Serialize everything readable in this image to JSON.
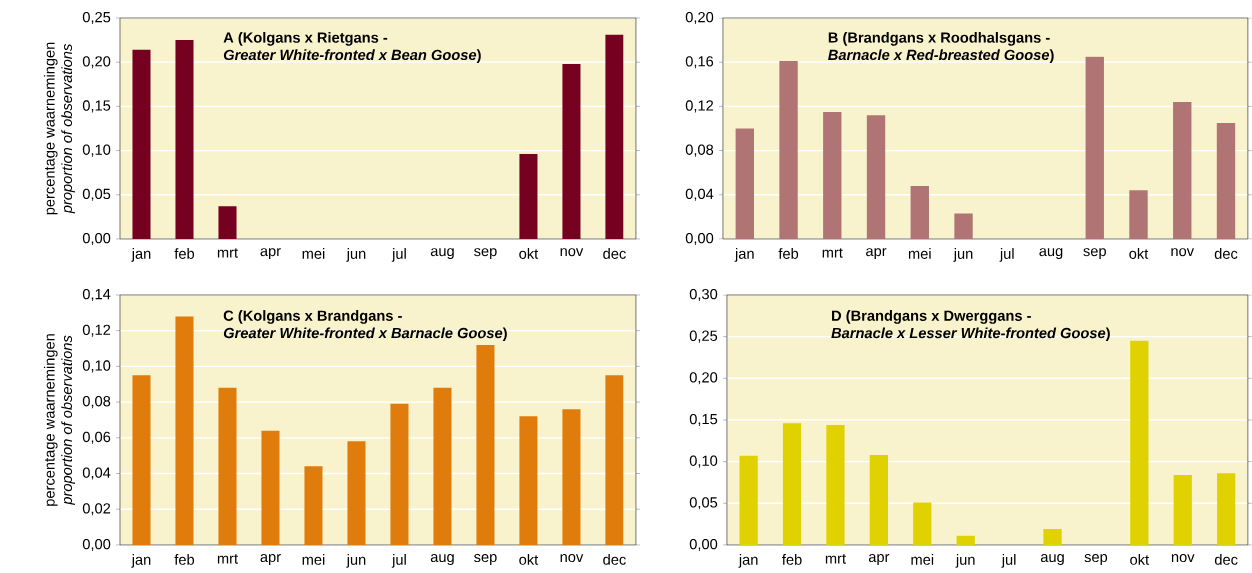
{
  "chart_data": [
    {
      "type": "bar",
      "title": "A (Kolgans x Rietgans -",
      "subtitle": "*Greater White-fronted x Bean Goose*)",
      "ylabel": "percentage waarnemingen",
      "annotations": [
        "proportion of observations"
      ],
      "categories": [
        "jan",
        "feb",
        "mrt",
        "apr",
        "mei",
        "jun",
        "jul",
        "aug",
        "sep",
        "okt",
        "nov",
        "dec"
      ],
      "values": [
        0.214,
        0.225,
        0.037,
        0,
        0,
        0,
        0,
        0,
        0,
        0.096,
        0.198,
        0.231
      ],
      "color": "#76001f",
      "ylim": [
        0,
        0.25
      ],
      "yticks": [
        {
          "value": 0,
          "label": "0,00"
        },
        {
          "value": 0.05,
          "label": "0,05"
        },
        {
          "value": 0.1,
          "label": "0,10"
        },
        {
          "value": 0.15,
          "label": "0,15"
        },
        {
          "value": 0.2,
          "label": "0,20"
        },
        {
          "value": 0.25,
          "label": "0,25"
        }
      ],
      "grid": "y"
    },
    {
      "type": "bar",
      "title": "B (Brandgans x Roodhalsgans -",
      "subtitle": "*Barnacle x Red-breasted Goose*)",
      "categories": [
        "jan",
        "feb",
        "mrt",
        "apr",
        "mei",
        "jun",
        "jul",
        "aug",
        "sep",
        "okt",
        "nov",
        "dec"
      ],
      "values": [
        0.1,
        0.161,
        0.115,
        0.112,
        0.048,
        0.023,
        0,
        0,
        0.165,
        0.044,
        0.124,
        0.105
      ],
      "color": "#b07474",
      "ylim": [
        0,
        0.2
      ],
      "yticks": [
        {
          "value": 0,
          "label": "0,00"
        },
        {
          "value": 0.04,
          "label": "0,04"
        },
        {
          "value": 0.08,
          "label": "0,08"
        },
        {
          "value": 0.12,
          "label": "0,12"
        },
        {
          "value": 0.16,
          "label": "0,16"
        },
        {
          "value": 0.2,
          "label": "0,20"
        }
      ],
      "grid": "y"
    },
    {
      "type": "bar",
      "title": "C (Kolgans x Brandgans -",
      "subtitle": "*Greater White-fronted x Barnacle Goose*)",
      "ylabel": "percentage waarnemingen",
      "annotations": [
        "proportion of observations"
      ],
      "categories": [
        "jan",
        "feb",
        "mrt",
        "apr",
        "mei",
        "jun",
        "jul",
        "aug",
        "sep",
        "okt",
        "nov",
        "dec"
      ],
      "values": [
        0.095,
        0.128,
        0.088,
        0.064,
        0.044,
        0.058,
        0.079,
        0.088,
        0.112,
        0.072,
        0.076,
        0.095
      ],
      "color": "#e07c0c",
      "ylim": [
        0,
        0.14
      ],
      "yticks": [
        {
          "value": 0,
          "label": "0,00"
        },
        {
          "value": 0.02,
          "label": "0,02"
        },
        {
          "value": 0.04,
          "label": "0,04"
        },
        {
          "value": 0.06,
          "label": "0,06"
        },
        {
          "value": 0.08,
          "label": "0,08"
        },
        {
          "value": 0.1,
          "label": "0,10"
        },
        {
          "value": 0.12,
          "label": "0,12"
        },
        {
          "value": 0.14,
          "label": "0,14"
        }
      ],
      "grid": "y"
    },
    {
      "type": "bar",
      "title": "D (Brandgans x Dwerggans -",
      "subtitle": "*Barnacle x Lesser White-fronted Goose*)",
      "categories": [
        "jan",
        "feb",
        "mrt",
        "apr",
        "mei",
        "jun",
        "jul",
        "aug",
        "sep",
        "okt",
        "nov",
        "dec"
      ],
      "values": [
        0.107,
        0.146,
        0.144,
        0.108,
        0.051,
        0.011,
        0,
        0.019,
        0,
        0.245,
        0.084,
        0.086
      ],
      "color": "#dfd200",
      "ylim": [
        0,
        0.3
      ],
      "yticks": [
        {
          "value": 0,
          "label": "0,00"
        },
        {
          "value": 0.05,
          "label": "0,05"
        },
        {
          "value": 0.1,
          "label": "0,10"
        },
        {
          "value": 0.15,
          "label": "0,15"
        },
        {
          "value": 0.2,
          "label": "0,20"
        },
        {
          "value": 0.25,
          "label": "0,25"
        },
        {
          "value": 0.3,
          "label": "0,30"
        }
      ],
      "grid": "y"
    }
  ]
}
